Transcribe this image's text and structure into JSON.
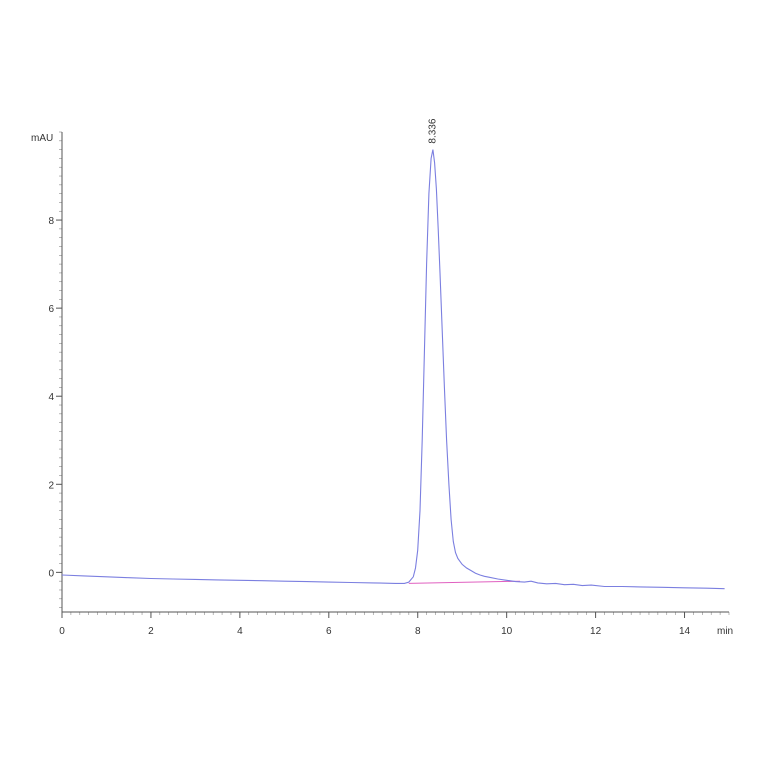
{
  "chart_data": {
    "type": "line",
    "title": "",
    "xlabel": "",
    "ylabel": "",
    "x_unit": "min",
    "y_unit": "mAU",
    "xlim": [
      0,
      15
    ],
    "ylim": [
      -0.9,
      10
    ],
    "x_ticks": [
      0,
      2,
      4,
      6,
      8,
      10,
      12,
      14
    ],
    "y_ticks": [
      0,
      2,
      4,
      6,
      8
    ],
    "x_minor_step": 0.2,
    "y_minor_step": 0.2,
    "grid": false,
    "legend": "none",
    "colors": {
      "signal": "#7b7fe0",
      "baseline": "#e060c0",
      "axis": "#555555"
    },
    "series": [
      {
        "values_x": [
          0,
          0.5,
          1,
          1.5,
          2,
          2.5,
          3,
          3.5,
          4,
          4.5,
          5,
          5.5,
          6,
          6.5,
          7,
          7.5,
          7.7,
          7.8,
          7.9,
          7.95,
          8.0,
          8.05,
          8.1,
          8.15,
          8.2,
          8.25,
          8.3,
          8.34,
          8.38,
          8.42,
          8.46,
          8.5,
          8.55,
          8.6,
          8.65,
          8.7,
          8.75,
          8.8,
          8.85,
          8.9,
          8.95,
          9.0,
          9.1,
          9.2,
          9.3,
          9.4,
          9.5,
          9.6,
          9.8,
          10.0,
          10.2,
          10.4,
          10.55,
          10.7,
          10.9,
          11.1,
          11.3,
          11.5,
          11.7,
          11.9,
          12.2,
          12.6,
          13.0,
          13.5,
          14.0,
          14.5,
          14.9
        ],
        "values_y": [
          -0.06,
          -0.08,
          -0.1,
          -0.12,
          -0.14,
          -0.15,
          -0.16,
          -0.17,
          -0.18,
          -0.19,
          -0.2,
          -0.21,
          -0.22,
          -0.23,
          -0.24,
          -0.25,
          -0.25,
          -0.22,
          -0.1,
          0.1,
          0.5,
          1.4,
          3.0,
          5.0,
          7.0,
          8.6,
          9.4,
          9.6,
          9.3,
          8.7,
          7.8,
          6.8,
          5.5,
          4.2,
          3.0,
          2.0,
          1.2,
          0.7,
          0.45,
          0.32,
          0.25,
          0.18,
          0.1,
          0.04,
          -0.02,
          -0.06,
          -0.09,
          -0.11,
          -0.15,
          -0.18,
          -0.21,
          -0.22,
          -0.2,
          -0.24,
          -0.26,
          -0.25,
          -0.28,
          -0.27,
          -0.3,
          -0.29,
          -0.32,
          -0.32,
          -0.33,
          -0.34,
          -0.35,
          -0.36,
          -0.37
        ]
      }
    ],
    "baseline_segment": {
      "x": [
        7.8,
        10.3
      ],
      "y": [
        -0.25,
        -0.2
      ]
    },
    "annotations": [
      {
        "text": "8.336",
        "x": 8.336,
        "y": 9.6
      }
    ]
  }
}
